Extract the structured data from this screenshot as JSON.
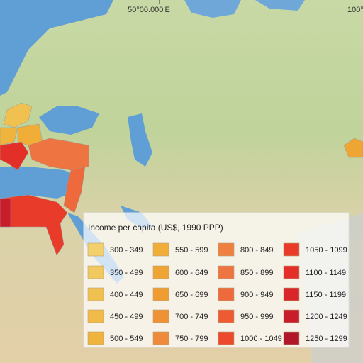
{
  "map": {
    "coordinates": [
      "50°00.000'E",
      "100°"
    ],
    "legend": {
      "title": "Income per capita (US$, 1990 PPP)",
      "items": [
        {
          "label": "300 - 349",
          "color": "#f2d06c"
        },
        {
          "label": "350 - 499",
          "color": "#f1c95f"
        },
        {
          "label": "400 - 449",
          "color": "#f0c151"
        },
        {
          "label": "450 - 499",
          "color": "#f0bb48"
        },
        {
          "label": "500 - 549",
          "color": "#efb43e"
        },
        {
          "label": "550 - 599",
          "color": "#f0ae38"
        },
        {
          "label": "600 - 649",
          "color": "#efa534"
        },
        {
          "label": "650 - 699",
          "color": "#ef9c33"
        },
        {
          "label": "700 - 749",
          "color": "#ef9235"
        },
        {
          "label": "750 - 799",
          "color": "#ee8a39"
        },
        {
          "label": "800 - 849",
          "color": "#ee8040"
        },
        {
          "label": "850 - 899",
          "color": "#ee7441"
        },
        {
          "label": "900 - 949",
          "color": "#ee6a3c"
        },
        {
          "label": "950 - 999",
          "color": "#ed5a34"
        },
        {
          "label": "1000 - 1049",
          "color": "#ec4a2d"
        },
        {
          "label": "1050 - 1099",
          "color": "#e93b2a"
        },
        {
          "label": "1100 - 1149",
          "color": "#e42f28"
        },
        {
          "label": "1150 - 1199",
          "color": "#d9262a"
        },
        {
          "label": "1200 - 1249",
          "color": "#c81e2c"
        },
        {
          "label": "1250 - 1299",
          "color": "#b0182a"
        }
      ]
    }
  }
}
